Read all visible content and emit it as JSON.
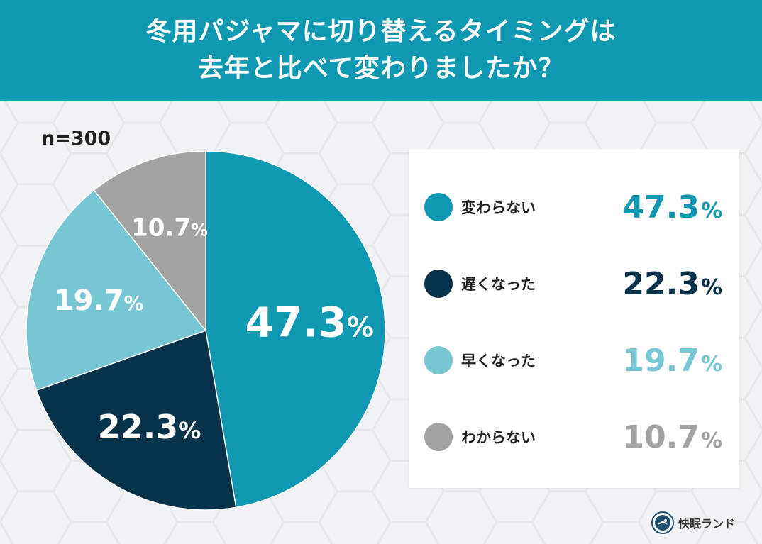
{
  "header": {
    "title_line1": "冬用パジャマに切り替えるタイミングは",
    "title_line2": "去年と比べて変わりましたか？"
  },
  "sample_size": "n=300",
  "brand": {
    "name": "快眠ランド",
    "logo_icon": "kaimin-land-logo-icon"
  },
  "colors": {
    "header_bg": "#0e98b1",
    "unchanged": "#0e98b1",
    "later": "#06334a",
    "earlier": "#77c6d4",
    "unknown": "#a3a3a3"
  },
  "chart_data": {
    "type": "pie",
    "title": "冬用パジャマに切り替えるタイミングは去年と比べて変わりましたか？",
    "note": "n=300",
    "unit": "%",
    "legend_position": "right",
    "slices": [
      {
        "label": "変わらない",
        "value": 47.3,
        "display": "47.3",
        "color": "#0e98b1"
      },
      {
        "label": "遅くなった",
        "value": 22.3,
        "display": "22.3",
        "color": "#06334a"
      },
      {
        "label": "早くなった",
        "value": 19.7,
        "display": "19.7",
        "color": "#77c6d4"
      },
      {
        "label": "わからない",
        "value": 10.7,
        "display": "10.7",
        "color": "#a3a3a3"
      }
    ]
  }
}
